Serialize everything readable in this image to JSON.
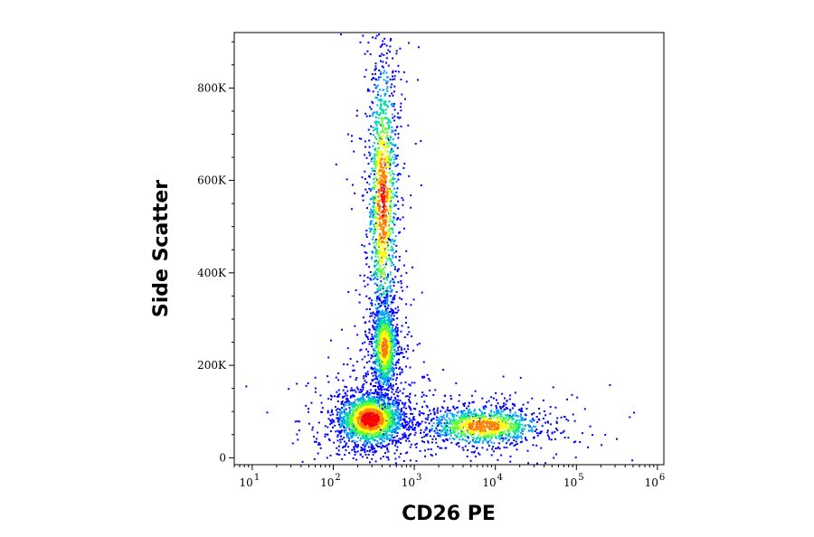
{
  "chart_data": {
    "type": "scatter",
    "xlabel": "CD26 PE",
    "ylabel": "Side Scatter",
    "xscale": "log",
    "xlim": [
      6,
      1200000
    ],
    "ylim": [
      -15000,
      920000
    ],
    "x_ticks": [
      {
        "value": 10,
        "base": "10",
        "exp": "1"
      },
      {
        "value": 100,
        "base": "10",
        "exp": "2"
      },
      {
        "value": 1000,
        "base": "10",
        "exp": "3"
      },
      {
        "value": 10000,
        "base": "10",
        "exp": "4"
      },
      {
        "value": 100000,
        "base": "10",
        "exp": "5"
      },
      {
        "value": 1000000,
        "base": "10",
        "exp": "6"
      }
    ],
    "y_ticks": [
      {
        "value": 0,
        "label": "0"
      },
      {
        "value": 200000,
        "label": "200K"
      },
      {
        "value": 400000,
        "label": "400K"
      },
      {
        "value": 600000,
        "label": "600K"
      },
      {
        "value": 800000,
        "label": "800K"
      }
    ],
    "grid": false,
    "legend": "none",
    "density_colormap": [
      "#0000ff",
      "#00a0ff",
      "#00e0a0",
      "#60ff30",
      "#ffff00",
      "#ff8000",
      "#ff0000"
    ],
    "populations": [
      {
        "center_x": 280,
        "center_y": 85000,
        "log_spread_x": 0.2,
        "spread_y": 28000,
        "relative_density": 1.0
      },
      {
        "center_x": 7000,
        "center_y": 70000,
        "log_spread_x": 0.35,
        "spread_y": 20000,
        "relative_density": 0.65
      },
      {
        "center_x": 400,
        "center_y": 560000,
        "log_spread_x": 0.09,
        "spread_y": 150000,
        "relative_density": 0.75
      },
      {
        "center_x": 420,
        "center_y": 240000,
        "log_spread_x": 0.08,
        "spread_y": 45000,
        "relative_density": 0.55
      }
    ]
  }
}
